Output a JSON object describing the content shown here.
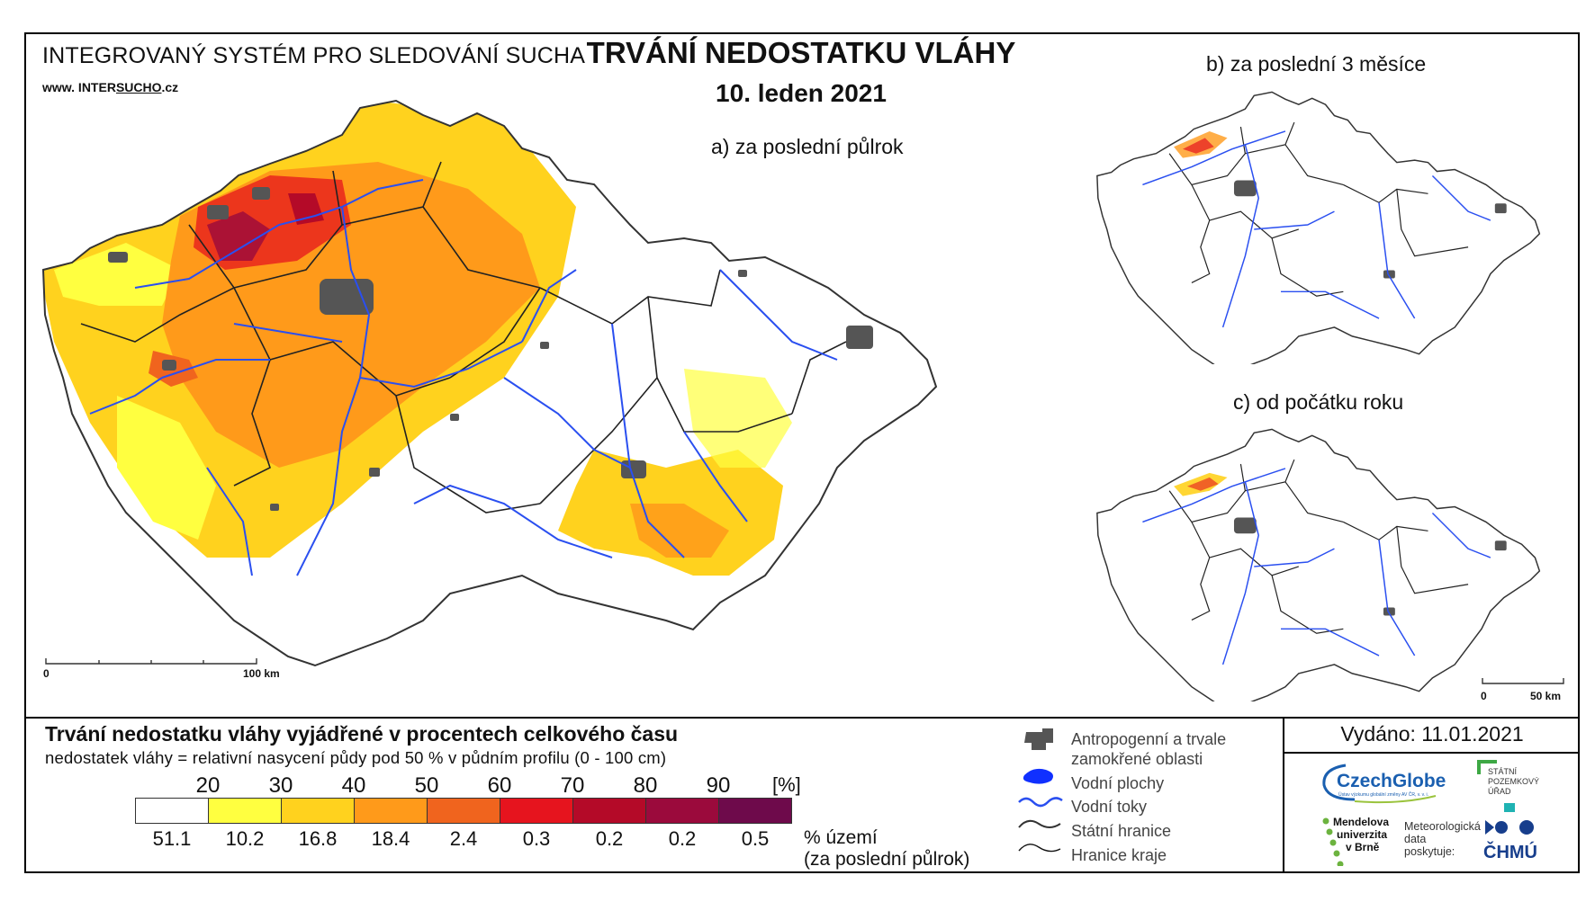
{
  "header": {
    "system_title": "INTEGROVANÝ SYSTÉM PRO SLEDOVÁNÍ SUCHA",
    "url_prefix": "www. INTER",
    "url_brand": "SUCHO",
    "url_suffix": ".cz",
    "main_title": "TRVÁNÍ NEDOSTATKU VLÁHY",
    "date": "10. leden 2021"
  },
  "maps": {
    "a_label": "a) za poslední půlrok",
    "b_label": "b) za poslední 3 měsíce",
    "c_label": "c) od počátku roku",
    "scalebar_main": {
      "start": "0",
      "end": "100 km"
    },
    "scalebar_small": {
      "start": "0",
      "end": "50 km"
    }
  },
  "legend": {
    "title": "Trvání nedostatku vláhy vyjádřené v procentech celkového času",
    "subtitle": "nedostatek vláhy = relativní nasycení půdy pod 50 % v půdním profilu (0 - 100 cm)",
    "thresholds": [
      "20",
      "30",
      "40",
      "50",
      "60",
      "70",
      "80",
      "90"
    ],
    "unit": "[%]",
    "class_colors": [
      "#ffffff",
      "#ffff40",
      "#ffd21e",
      "#ff9a1a",
      "#f0641e",
      "#e6141e",
      "#b40a28",
      "#9b0a3c",
      "#6e0a4b"
    ],
    "area_percent": [
      "51.1",
      "10.2",
      "16.8",
      "18.4",
      "2.4",
      "0.3",
      "0.2",
      "0.2",
      "0.5"
    ],
    "area_label_1": "% území",
    "area_label_2": "(za poslední půlrok)",
    "symbols": [
      {
        "label_1": "Antropogenní a trvale",
        "label_2": "zamokřené oblasti",
        "icon": "urban-area-icon"
      },
      {
        "label_1": "Vodní plochy",
        "icon": "water-body-icon"
      },
      {
        "label_1": "Vodní toky",
        "icon": "river-icon"
      },
      {
        "label_1": "Státní hranice",
        "icon": "state-border-icon"
      },
      {
        "label_1": "Hranice kraje",
        "icon": "region-border-icon"
      }
    ],
    "colors": {
      "river": "#2a4ff0",
      "urban": "#555555",
      "water": "#1030ff"
    }
  },
  "footer": {
    "issued": "Vydáno: 11.01.2021",
    "czechglobe": "CzechGlobe",
    "czechglobe_sub": "Ústav výzkumu globální změny AV ČR, v. v. i.",
    "spu": [
      "STÁTNÍ",
      "POZEMKOVÝ",
      "ÚŘAD"
    ],
    "mendelu": [
      "Mendelova",
      "univerzita",
      "v Brně"
    ],
    "met": [
      "Meteorologická",
      "data",
      "poskytuje:"
    ],
    "chmu": "ČHMÚ"
  }
}
